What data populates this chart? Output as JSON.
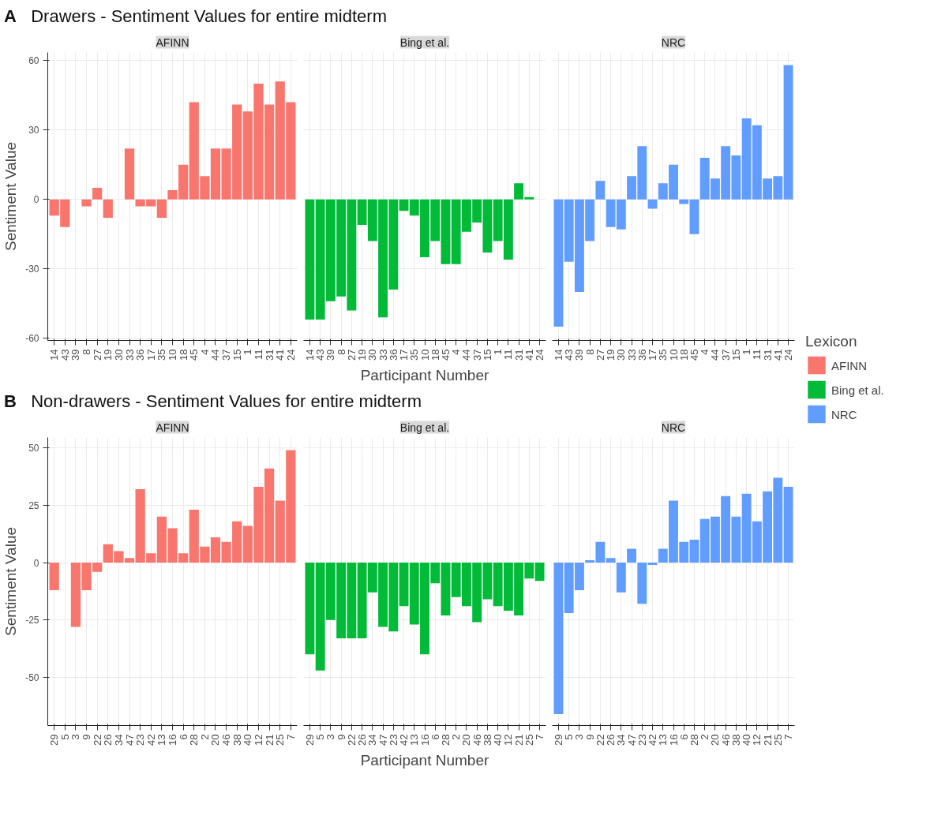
{
  "chart_data": [
    {
      "type": "bar",
      "title": "Drawers - Sentiment Values for entire midterm",
      "annotations": [
        "A"
      ],
      "ylabel": "Sentiment Value",
      "categories": [
        "14",
        "43",
        "39",
        "8",
        "27",
        "19",
        "30",
        "33",
        "36",
        "17",
        "35",
        "10",
        "18",
        "45",
        "4",
        "44",
        "37",
        "15",
        "1",
        "11",
        "31",
        "41",
        "24"
      ],
      "series": [
        {
          "name": "AFINN",
          "color": "#f8766d",
          "values": [
            -7,
            -12,
            0,
            -3,
            5,
            -8,
            0,
            22,
            -3,
            -3,
            -8,
            4,
            15,
            42,
            10,
            22,
            22,
            41,
            38,
            50,
            41,
            51,
            42
          ]
        }
      ],
      "ylim": [
        -61,
        63.5
      ],
      "yticks": [
        -60,
        -30,
        0,
        30,
        60
      ],
      "grid": true
    },
    {
      "type": "bar",
      "xlabel": "Participant Number",
      "categories": [
        "14",
        "43",
        "39",
        "8",
        "27",
        "19",
        "30",
        "33",
        "36",
        "17",
        "35",
        "10",
        "18",
        "45",
        "4",
        "44",
        "37",
        "15",
        "1",
        "11",
        "31",
        "41",
        "24"
      ],
      "series": [
        {
          "name": "Bing et al.",
          "color": "#00ba38",
          "values": [
            -52,
            -52,
            -44,
            -42,
            -48,
            -11,
            -18,
            -51,
            -39,
            -5,
            -7,
            -25,
            -18,
            -28,
            -28,
            -14,
            -10,
            -23,
            -18,
            -26,
            7,
            1,
            0
          ]
        }
      ],
      "ylim": [
        -61,
        63.5
      ],
      "yticks": [
        -60,
        -30,
        0,
        30,
        60
      ],
      "grid": true,
      "tick_labels": "x"
    },
    {
      "type": "bar",
      "legend_title": "Lexicon",
      "legend": "right",
      "categories": [
        "14",
        "43",
        "39",
        "8",
        "27",
        "19",
        "30",
        "33",
        "36",
        "17",
        "35",
        "10",
        "18",
        "45",
        "4",
        "44",
        "37",
        "15",
        "1",
        "11",
        "31",
        "41",
        "24"
      ],
      "series": [
        {
          "name": "NRC",
          "color": "#619cff",
          "values": [
            -55,
            -27,
            -40,
            -18,
            8,
            -12,
            -13,
            10,
            23,
            -4,
            7,
            15,
            -2,
            -15,
            18,
            9,
            23,
            19,
            35,
            32,
            9,
            10,
            58
          ]
        }
      ],
      "ylim": [
        -61,
        63.5
      ],
      "yticks": [
        -60,
        -30,
        0,
        30,
        60
      ],
      "grid": true,
      "tick_labels": "x"
    },
    {
      "type": "bar",
      "title": "Non-drawers - Sentiment Values for entire midterm",
      "annotations": [
        "B"
      ],
      "ylabel": "Sentiment Value",
      "categories": [
        "29",
        "5",
        "3",
        "9",
        "22",
        "26",
        "34",
        "47",
        "23",
        "42",
        "13",
        "16",
        "6",
        "28",
        "2",
        "20",
        "46",
        "38",
        "40",
        "12",
        "21",
        "25",
        "7"
      ],
      "series": [
        {
          "name": "AFINN",
          "color": "#f8766d",
          "values": [
            -12,
            0,
            -28,
            -12,
            -4,
            8,
            5,
            2,
            32,
            4,
            20,
            15,
            4,
            23,
            7,
            11,
            9,
            18,
            16,
            33,
            41,
            27,
            49
          ]
        }
      ],
      "ylim": [
        -71,
        54.5
      ],
      "yticks": [
        -50,
        -25,
        0,
        25,
        50
      ],
      "grid": true
    },
    {
      "type": "bar",
      "xlabel": "Participant Number",
      "categories": [
        "29",
        "5",
        "3",
        "9",
        "22",
        "26",
        "34",
        "47",
        "23",
        "42",
        "13",
        "16",
        "6",
        "28",
        "2",
        "20",
        "46",
        "38",
        "40",
        "12",
        "21",
        "25",
        "7"
      ],
      "series": [
        {
          "name": "Bing et al.",
          "color": "#00ba38",
          "values": [
            -40,
            -47,
            -25,
            -33,
            -33,
            -33,
            -13,
            -28,
            -30,
            -19,
            -27,
            -40,
            -9,
            -23,
            -15,
            -19,
            -26,
            -16,
            -19,
            -21,
            -23,
            -7,
            -8
          ]
        }
      ],
      "ylim": [
        -71,
        54.5
      ],
      "yticks": [
        -50,
        -25,
        0,
        25,
        50
      ],
      "grid": true,
      "tick_labels": "x"
    },
    {
      "type": "bar",
      "categories": [
        "29",
        "5",
        "3",
        "9",
        "22",
        "26",
        "34",
        "47",
        "23",
        "42",
        "13",
        "16",
        "6",
        "28",
        "2",
        "20",
        "46",
        "38",
        "40",
        "12",
        "21",
        "25",
        "7"
      ],
      "series": [
        {
          "name": "NRC",
          "color": "#619cff",
          "values": [
            -66,
            -22,
            -12,
            1,
            9,
            2,
            -13,
            6,
            -18,
            -1,
            6,
            27,
            9,
            10,
            19,
            20,
            29,
            20,
            30,
            18,
            31,
            37,
            33
          ]
        }
      ],
      "ylim": [
        -71,
        54.5
      ],
      "yticks": [
        -50,
        -25,
        0,
        25,
        50
      ],
      "grid": true,
      "tick_labels": "x"
    }
  ]
}
